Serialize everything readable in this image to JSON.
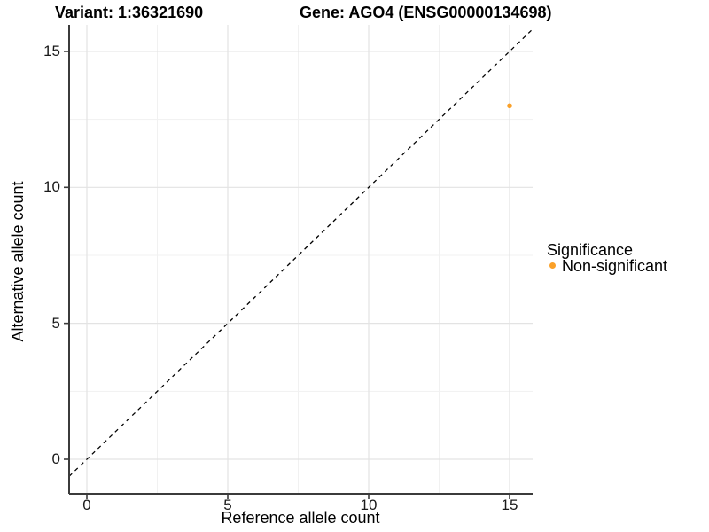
{
  "titles": {
    "variant": "Variant: 1:36321690",
    "gene": "Gene: AGO4 (ENSG00000134698)"
  },
  "legend": {
    "title": "Significance",
    "items": [
      {
        "label": "Non-significant",
        "color": "#FAA028"
      }
    ]
  },
  "chart_data": {
    "type": "scatter",
    "title_left": "Variant: 1:36321690",
    "title_right": "Gene: AGO4 (ENSG00000134698)",
    "xlabel": "Reference allele count",
    "ylabel": "Alternative allele count",
    "x_ticks": [
      0,
      5,
      10,
      15
    ],
    "y_ticks": [
      0,
      5,
      10,
      15
    ],
    "x_tick_labels": [
      "0",
      "5",
      "10",
      "15"
    ],
    "y_tick_labels": [
      "0",
      "5",
      "10",
      "15"
    ],
    "minor_ticks": [
      2.5,
      7.5,
      12.5
    ],
    "xlim": [
      -0.65,
      15.85
    ],
    "ylim": [
      -1.25,
      15.95
    ],
    "grid": true,
    "legend_position": "right",
    "legend_title": "Significance",
    "series": [
      {
        "name": "Non-significant",
        "color": "#FAA028",
        "points": [
          {
            "x": 15,
            "y": 13
          }
        ]
      }
    ],
    "reference_line": {
      "type": "identity y = x",
      "style": "dashed",
      "color": "#000000"
    },
    "colors": {
      "major_grid": "#e3e3e3",
      "minor_grid": "#f1f1f1",
      "axis": "#3b3b3b",
      "background": "#ffffff"
    }
  }
}
